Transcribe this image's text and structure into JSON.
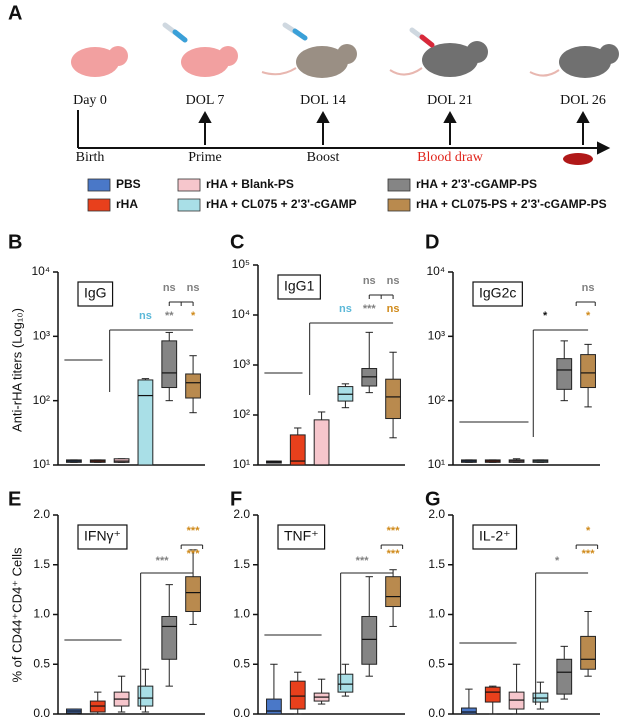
{
  "panel_labels": [
    "A",
    "B",
    "C",
    "D",
    "E",
    "F",
    "G"
  ],
  "timeline": {
    "days": [
      "Day 0",
      "DOL 7",
      "DOL 14",
      "DOL 21",
      "DOL 26"
    ],
    "events": [
      {
        "text": "Birth",
        "color": "#111111"
      },
      {
        "text": "Prime",
        "color": "#111111"
      },
      {
        "text": "Boost",
        "color": "#111111"
      },
      {
        "text": "Blood draw",
        "color": "#e0241b"
      }
    ]
  },
  "legend": [
    {
      "name": "PBS",
      "color": "#4a78c8"
    },
    {
      "name": "rHA",
      "color": "#e8401c"
    },
    {
      "name": "rHA + Blank-PS",
      "color": "#f6c6cc"
    },
    {
      "name": "rHA + CL075 + 2'3'-cGAMP",
      "color": "#a9dfe7"
    },
    {
      "name": "rHA + 2'3'-cGAMP-PS",
      "color": "#858585"
    },
    {
      "name": "rHA + CL075-PS + 2'3'-cGAMP-PS",
      "color": "#b98a4e"
    }
  ],
  "chart_data": [
    {
      "type": "box",
      "title": "IgG",
      "ylabel": "Anti-rHA titers (Log₁₀)",
      "log": true,
      "ylim": [
        10,
        10000
      ],
      "yticks": [
        {
          "value": 10,
          "label": "10¹"
        },
        {
          "value": 100,
          "label": "10²"
        },
        {
          "value": 1000,
          "label": "10³"
        },
        {
          "value": 10000,
          "label": "10⁴"
        }
      ],
      "boxes": [
        {
          "min": 11,
          "q1": 11,
          "median": 11.5,
          "q3": 12,
          "max": 12
        },
        {
          "min": 11,
          "q1": 11,
          "median": 11.5,
          "q3": 12,
          "max": 12
        },
        {
          "min": 11,
          "q1": 11,
          "median": 11.5,
          "q3": 12.5,
          "max": 12.5
        },
        {
          "min": 10,
          "q1": 10,
          "median": 120,
          "q3": 210,
          "max": 220
        },
        {
          "min": 100,
          "q1": 160,
          "median": 270,
          "q3": 850,
          "max": 1150
        },
        {
          "min": 65,
          "q1": 110,
          "median": 190,
          "q3": 260,
          "max": 500
        }
      ],
      "annotations": [
        {
          "text": "ns",
          "color": "#5bb8d8"
        },
        {
          "text": "**",
          "color": "#808080"
        },
        {
          "text": "*",
          "color": "#d08a1a"
        },
        {
          "text": "ns",
          "color": "#808080"
        },
        {
          "text": "ns",
          "color": "#808080"
        }
      ]
    },
    {
      "type": "box",
      "title": "IgG1",
      "log": true,
      "ylim": [
        10,
        100000
      ],
      "yticks": [
        {
          "value": 10,
          "label": "10¹"
        },
        {
          "value": 100,
          "label": "10²"
        },
        {
          "value": 1000,
          "label": "10³"
        },
        {
          "value": 10000,
          "label": "10⁴"
        },
        {
          "value": 100000,
          "label": "10⁵"
        }
      ],
      "boxes": [
        {
          "min": 11,
          "q1": 11,
          "median": 11.5,
          "q3": 12,
          "max": 12
        },
        {
          "min": 10,
          "q1": 10,
          "median": 12,
          "q3": 40,
          "max": 55
        },
        {
          "min": 10,
          "q1": 10,
          "median": 10,
          "q3": 80,
          "max": 115
        },
        {
          "min": 140,
          "q1": 190,
          "median": 260,
          "q3": 370,
          "max": 420
        },
        {
          "min": 280,
          "q1": 380,
          "median": 580,
          "q3": 850,
          "max": 4500
        },
        {
          "min": 35,
          "q1": 85,
          "median": 230,
          "q3": 520,
          "max": 1800
        }
      ],
      "annotations": [
        {
          "text": "ns",
          "color": "#5bb8d8"
        },
        {
          "text": "***",
          "color": "#808080"
        },
        {
          "text": "ns",
          "color": "#d08a1a"
        },
        {
          "text": "ns",
          "color": "#808080"
        },
        {
          "text": "ns",
          "color": "#808080"
        }
      ]
    },
    {
      "type": "box",
      "title": "IgG2c",
      "log": true,
      "ylim": [
        10,
        10000
      ],
      "yticks": [
        {
          "value": 10,
          "label": "10¹"
        },
        {
          "value": 100,
          "label": "10²"
        },
        {
          "value": 1000,
          "label": "10³"
        },
        {
          "value": 10000,
          "label": "10⁴"
        }
      ],
      "boxes": [
        {
          "min": 11,
          "q1": 11,
          "median": 11.5,
          "q3": 12,
          "max": 12
        },
        {
          "min": 11,
          "q1": 11,
          "median": 11.5,
          "q3": 12,
          "max": 12
        },
        {
          "min": 11,
          "q1": 11,
          "median": 11.5,
          "q3": 12,
          "max": 12.5
        },
        {
          "min": 11,
          "q1": 11,
          "median": 11.5,
          "q3": 12,
          "max": 12
        },
        {
          "min": 100,
          "q1": 150,
          "median": 300,
          "q3": 450,
          "max": 850
        },
        {
          "min": 80,
          "q1": 160,
          "median": 270,
          "q3": 520,
          "max": 750
        }
      ],
      "annotations": [
        {
          "text": "*",
          "color": "#111111"
        },
        {
          "text": "*",
          "color": "#d08a1a"
        },
        {
          "text": "ns",
          "color": "#808080"
        }
      ]
    },
    {
      "type": "box",
      "title": "IFNγ⁺",
      "ylabel": "% of CD44⁺CD4⁺ Cells",
      "log": false,
      "ylim": [
        0,
        2
      ],
      "yticks": [
        {
          "value": 0,
          "label": "0.0"
        },
        0.5,
        {
          "value": 1,
          "label": "1.0"
        },
        1.5,
        {
          "value": 2,
          "label": "2.0"
        }
      ],
      "boxes": [
        {
          "min": 0,
          "q1": 0.01,
          "median": 0.03,
          "q3": 0.05,
          "max": 0.05
        },
        {
          "min": 0,
          "q1": 0.02,
          "median": 0.08,
          "q3": 0.13,
          "max": 0.22
        },
        {
          "min": 0.02,
          "q1": 0.08,
          "median": 0.15,
          "q3": 0.22,
          "max": 0.38
        },
        {
          "min": 0.02,
          "q1": 0.08,
          "median": 0.16,
          "q3": 0.28,
          "max": 0.45
        },
        {
          "min": 0.28,
          "q1": 0.55,
          "median": 0.88,
          "q3": 0.98,
          "max": 1.3
        },
        {
          "min": 0.9,
          "q1": 1.03,
          "median": 1.22,
          "q3": 1.38,
          "max": 1.65
        }
      ],
      "annotations": [
        {
          "text": "***",
          "color": "#808080"
        },
        {
          "text": "***",
          "color": "#d08a1a"
        },
        {
          "text": "***",
          "color": "#d08a1a"
        }
      ]
    },
    {
      "type": "box",
      "title": "TNF⁺",
      "log": false,
      "ylim": [
        0,
        2
      ],
      "yticks": [
        {
          "value": 0,
          "label": "0.0"
        },
        0.5,
        {
          "value": 1,
          "label": "1.0"
        },
        1.5,
        {
          "value": 2,
          "label": "2.0"
        }
      ],
      "boxes": [
        {
          "min": 0,
          "q1": 0,
          "median": 0.03,
          "q3": 0.15,
          "max": 0.5
        },
        {
          "min": 0,
          "q1": 0.05,
          "median": 0.18,
          "q3": 0.33,
          "max": 0.42
        },
        {
          "min": 0.1,
          "q1": 0.13,
          "median": 0.17,
          "q3": 0.21,
          "max": 0.35
        },
        {
          "min": 0.18,
          "q1": 0.22,
          "median": 0.3,
          "q3": 0.4,
          "max": 0.5
        },
        {
          "min": 0.38,
          "q1": 0.5,
          "median": 0.75,
          "q3": 0.98,
          "max": 1.38
        },
        {
          "min": 0.88,
          "q1": 1.08,
          "median": 1.18,
          "q3": 1.38,
          "max": 1.45
        }
      ],
      "annotations": [
        {
          "text": "***",
          "color": "#808080"
        },
        {
          "text": "***",
          "color": "#d08a1a"
        },
        {
          "text": "***",
          "color": "#d08a1a"
        }
      ]
    },
    {
      "type": "box",
      "title": "IL-2⁺",
      "log": false,
      "ylim": [
        0,
        2
      ],
      "yticks": [
        {
          "value": 0,
          "label": "0.0"
        },
        0.5,
        {
          "value": 1,
          "label": "1.0"
        },
        1.5,
        {
          "value": 2,
          "label": "2.0"
        }
      ],
      "boxes": [
        {
          "min": 0,
          "q1": 0,
          "median": 0.02,
          "q3": 0.06,
          "max": 0.25
        },
        {
          "min": 0,
          "q1": 0.12,
          "median": 0.22,
          "q3": 0.27,
          "max": 0.28
        },
        {
          "min": 0,
          "q1": 0.05,
          "median": 0.14,
          "q3": 0.22,
          "max": 0.5
        },
        {
          "min": 0.05,
          "q1": 0.12,
          "median": 0.16,
          "q3": 0.21,
          "max": 0.32
        },
        {
          "min": 0.15,
          "q1": 0.2,
          "median": 0.42,
          "q3": 0.55,
          "max": 0.68
        },
        {
          "min": 0.38,
          "q1": 0.45,
          "median": 0.55,
          "q3": 0.78,
          "max": 1.03
        }
      ],
      "annotations": [
        {
          "text": "*",
          "color": "#808080"
        },
        {
          "text": "*",
          "color": "#d08a1a"
        },
        {
          "text": "***",
          "color": "#d08a1a"
        }
      ]
    }
  ]
}
